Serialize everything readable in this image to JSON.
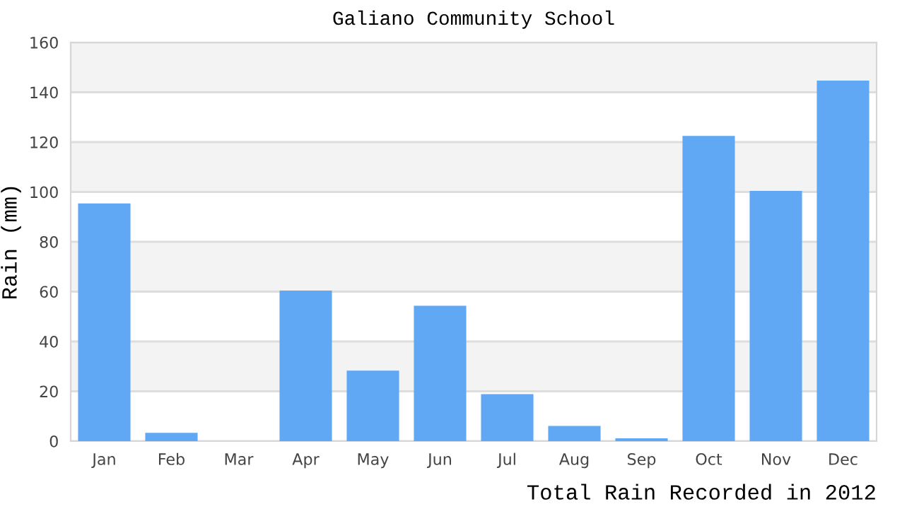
{
  "chart_data": {
    "type": "bar",
    "title": "Galiano Community School",
    "xlabel": "Total Rain Recorded in 2012",
    "ylabel": "Rain (mm)",
    "categories": [
      "Jan",
      "Feb",
      "Mar",
      "Apr",
      "May",
      "Jun",
      "Jul",
      "Aug",
      "Sep",
      "Oct",
      "Nov",
      "Dec"
    ],
    "values": [
      95.4,
      3.3,
      0,
      60.4,
      28.3,
      54.3,
      18.9,
      6.1,
      1.1,
      122.5,
      100.4,
      144.7
    ],
    "color": "#60a8f4",
    "ylim": [
      0,
      160
    ],
    "yticks": [
      0,
      20,
      40,
      60,
      80,
      100,
      120,
      140,
      160
    ],
    "grid": "y",
    "bands": [
      {
        "axis": "y",
        "from": 20,
        "to": 40,
        "color": "#f3f3f3"
      },
      {
        "axis": "y",
        "from": 60,
        "to": 80,
        "color": "#f3f3f3"
      },
      {
        "axis": "y",
        "from": 100,
        "to": 120,
        "color": "#f3f3f3"
      },
      {
        "axis": "y",
        "from": 140,
        "to": 160,
        "color": "#f3f3f3"
      }
    ]
  }
}
